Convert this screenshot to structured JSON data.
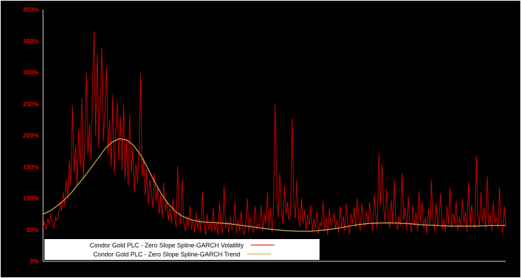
{
  "page": {
    "background": "#000000",
    "frame_border_color": "#ffffff"
  },
  "chart_data": {
    "type": "line",
    "title": "",
    "xlabel": "",
    "ylabel": "",
    "x_axis_labels_visible": false,
    "ylim": [
      0,
      400
    ],
    "y_ticks": [
      0,
      50,
      100,
      150,
      200,
      250,
      300,
      350,
      400
    ],
    "y_tick_labels": [
      "0%",
      "50%",
      "100%",
      "150%",
      "200%",
      "250%",
      "300%",
      "350%",
      "400%"
    ],
    "axis_label_color": "#e60000",
    "axis_line_color": "#e0e0e0",
    "grid": false,
    "legend_position": "bottom-center",
    "legend_background": "#ffffff",
    "series": [
      {
        "name": "Condor Gold PLC - Zero Slope Spline-GARCH Volatility",
        "color": "#dd0000",
        "values": [
          55,
          62,
          50,
          68,
          58,
          75,
          60,
          52,
          70,
          65,
          72,
          95,
          80,
          110,
          88,
          130,
          100,
          160,
          120,
          248,
          140,
          185,
          120,
          210,
          150,
          260,
          130,
          190,
          300,
          170,
          220,
          160,
          280,
          365,
          200,
          330,
          180,
          255,
          340,
          190,
          240,
          310,
          170,
          225,
          150,
          265,
          140,
          205,
          255,
          160,
          230,
          145,
          250,
          130,
          195,
          120,
          235,
          140,
          180,
          110,
          155,
          125,
          175,
          300,
          135,
          165,
          105,
          145,
          90,
          130,
          110,
          85,
          140,
          95,
          120,
          75,
          105,
          70,
          125,
          80,
          95,
          65,
          85,
          60,
          100,
          70,
          55,
          152,
          75,
          58,
          130,
          62,
          48,
          72,
          55,
          88,
          50,
          65,
          45,
          78,
          52,
          68,
          45,
          110,
          58,
          42,
          75,
          50,
          62,
          46,
          85,
          48,
          60,
          42,
          95,
          55,
          44,
          120,
          52,
          64,
          46,
          72,
          50,
          58,
          95,
          44,
          66,
          48,
          80,
          54,
          42,
          62,
          100,
          47,
          70,
          52,
          45,
          88,
          50,
          60,
          55,
          90,
          48,
          75,
          60,
          110,
          52,
          85,
          46,
          95,
          250,
          105,
          70,
          140,
          85,
          60,
          120,
          75,
          95,
          65,
          80,
          228,
          95,
          68,
          130,
          72,
          55,
          100,
          60,
          82,
          50,
          75,
          58,
          90,
          47,
          68,
          52,
          80,
          44,
          62,
          55,
          95,
          48,
          70,
          42,
          85,
          56,
          64,
          78,
          50,
          66,
          45,
          88,
          54,
          72,
          48,
          92,
          58,
          43,
          76,
          60,
          85,
          52,
          100,
          70,
          48,
          92,
          65,
          55,
          80,
          58,
          95,
          68,
          48,
          105,
          75,
          52,
          172,
          88,
          155,
          90,
          62,
          115,
          70,
          52,
          98,
          58,
          128,
          66,
          50,
          72,
          55,
          140,
          64,
          86,
          50,
          104,
          60,
          46,
          90,
          56,
          78,
          48,
          112,
          62,
          95,
          52,
          70,
          44,
          84,
          58,
          130,
          66,
          48,
          92,
          55,
          74,
          108,
          50,
          68,
          46,
          88,
          58,
          118,
          52,
          76,
          62,
          96,
          48,
          70,
          54,
          100,
          60,
          80,
          47,
          125,
          56,
          90,
          64,
          52,
          168,
          72,
          55,
          110,
          62,
          86,
          50,
          135,
          58,
          75,
          48,
          95,
          60,
          70,
          52,
          118,
          65,
          45,
          88,
          55
        ]
      },
      {
        "name": "Condor Gold PLC - Zero Slope Spline-GARCH Trend",
        "color": "#c9a94f",
        "anchors_x": [
          0,
          0.015,
          0.03,
          0.045,
          0.06,
          0.075,
          0.09,
          0.105,
          0.12,
          0.135,
          0.15,
          0.165,
          0.18,
          0.195,
          0.21,
          0.225,
          0.24,
          0.255,
          0.27,
          0.285,
          0.3,
          0.32,
          0.34,
          0.36,
          0.38,
          0.4,
          0.43,
          0.46,
          0.49,
          0.52,
          0.55,
          0.58,
          0.61,
          0.64,
          0.67,
          0.7,
          0.73,
          0.76,
          0.79,
          0.82,
          0.85,
          0.88,
          0.91,
          0.94,
          0.97,
          1.0
        ],
        "anchors_y": [
          75,
          80,
          88,
          97,
          108,
          122,
          135,
          150,
          165,
          180,
          190,
          195,
          193,
          185,
          170,
          150,
          128,
          108,
          92,
          80,
          72,
          66,
          63,
          62,
          61,
          60,
          57,
          54,
          51,
          49,
          48,
          48,
          50,
          53,
          57,
          60,
          61,
          61,
          60,
          58,
          57,
          56,
          56,
          56,
          57,
          57
        ]
      }
    ]
  }
}
